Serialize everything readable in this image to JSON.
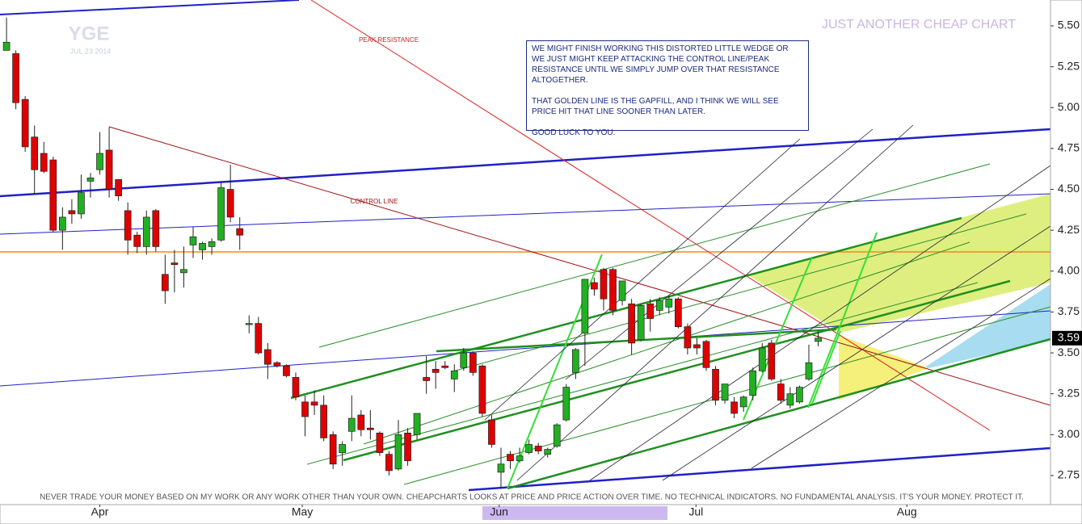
{
  "chart_data": {
    "type": "candlestick",
    "ticker": "YGE",
    "date": "JUL 23 2014",
    "brand": "JUST ANOTHER CHEAP CHART",
    "annotations": [
      "PEAK RESISTANCE",
      "CONTROL LINE"
    ],
    "note": [
      "WE MIGHT FINISH WORKING THIS DISTORTED LITTLE WEDGE OR WE JUST MIGHT KEEP ATTACKING THE CONTROL LINE/PEAK RESISTANCE UNTIL WE SIMPLY JUMP OVER THAT RESISTANCE ALTOGETHER.",
      "THAT GOLDEN LINE IS THE GAPFILL, AND I THINK WE WILL SEE PRICE HIT THAT LINE SOONER THAN LATER.",
      "GOOD LUCK TO YOU."
    ],
    "disclaimer": "NEVER TRADE YOUR MONEY BASED ON MY WORK OR ANY WORK OTHER THAN YOUR OWN. CHEAPCHARTS LOOKS AT PRICE AND PRICE ACTION OVER TIME. NO TECHNICAL INDICATORS. NO FUNDAMENTAL ANALYSIS. IT'S YOUR MONEY. PROTECT IT.",
    "up_color": "#22b022",
    "down_color": "#e00000",
    "open": [
      5.35,
      5.33,
      5.05,
      4.82,
      4.72,
      4.68,
      4.25,
      4.37,
      4.35,
      4.55,
      4.62,
      4.74,
      4.56,
      4.37,
      4.22,
      4.15,
      4.37,
      3.98,
      4.05,
      3.99,
      4.16,
      4.13,
      4.15,
      4.19,
      4.5,
      4.26,
      3.68,
      3.68,
      3.52,
      3.44,
      3.42,
      3.35,
      3.2,
      3.2,
      3.18,
      3.0,
      2.89,
      3.02,
      3.12,
      3.04,
      3.01,
      2.88,
      2.79,
      3.01,
      3.0,
      3.35,
      3.4,
      3.42,
      3.34,
      3.41,
      3.5,
      3.42,
      3.09,
      2.77,
      2.88,
      2.84,
      2.89,
      2.93,
      2.88,
      2.93,
      3.09,
      3.38,
      3.62,
      3.93,
      4.01,
      4.01,
      3.82,
      3.8,
      3.58,
      3.8,
      3.76,
      3.78,
      3.83,
      3.66,
      3.55,
      3.57,
      3.4,
      3.21,
      3.2,
      3.17,
      3.24,
      3.39,
      3.56,
      3.31,
      3.18,
      3.2,
      3.34,
      3.57
    ],
    "high": [
      5.55,
      5.35,
      5.07,
      4.89,
      4.79,
      4.7,
      4.39,
      4.44,
      4.59,
      4.6,
      4.85,
      4.88,
      4.56,
      4.42,
      4.24,
      4.37,
      4.38,
      4.1,
      4.13,
      4.15,
      4.27,
      4.18,
      4.2,
      4.55,
      4.65,
      4.33,
      3.73,
      3.72,
      3.56,
      3.45,
      3.43,
      3.38,
      3.24,
      3.27,
      3.24,
      3.02,
      2.96,
      3.24,
      3.15,
      3.15,
      3.02,
      2.9,
      3.09,
      3.04,
      3.13,
      3.48,
      3.45,
      3.45,
      3.43,
      3.53,
      3.51,
      3.43,
      3.12,
      2.92,
      2.9,
      2.92,
      2.97,
      2.95,
      2.92,
      3.07,
      3.31,
      3.53,
      3.95,
      3.96,
      4.02,
      4.02,
      3.94,
      3.83,
      3.8,
      3.83,
      3.84,
      3.85,
      3.84,
      3.68,
      3.59,
      3.58,
      3.42,
      3.29,
      3.23,
      3.24,
      3.41,
      3.56,
      3.58,
      3.34,
      3.29,
      3.3,
      3.55,
      3.63
    ],
    "low": [
      5.35,
      4.99,
      4.73,
      4.47,
      4.6,
      4.24,
      4.13,
      4.29,
      4.32,
      4.45,
      4.59,
      4.45,
      4.43,
      4.1,
      4.11,
      4.1,
      4.12,
      3.8,
      3.87,
      3.9,
      4.08,
      4.07,
      4.1,
      4.18,
      4.3,
      4.13,
      3.62,
      3.49,
      3.34,
      3.41,
      3.35,
      3.21,
      2.99,
      3.12,
      2.96,
      2.79,
      2.81,
      2.96,
      2.99,
      2.97,
      2.87,
      2.75,
      2.78,
      2.81,
      2.97,
      3.25,
      3.28,
      3.4,
      3.26,
      3.39,
      3.36,
      3.11,
      2.92,
      2.67,
      2.79,
      2.83,
      2.88,
      2.88,
      2.86,
      2.92,
      3.08,
      3.34,
      3.42,
      3.85,
      3.76,
      3.73,
      3.79,
      3.49,
      3.57,
      3.63,
      3.73,
      3.74,
      3.65,
      3.49,
      3.49,
      3.39,
      3.18,
      3.19,
      3.1,
      3.14,
      3.21,
      3.38,
      3.33,
      3.19,
      3.16,
      3.19,
      3.33,
      3.54
    ],
    "close": [
      5.4,
      5.03,
      4.76,
      4.62,
      4.61,
      4.25,
      4.33,
      4.35,
      4.48,
      4.57,
      4.72,
      4.5,
      4.46,
      4.19,
      4.15,
      4.33,
      4.15,
      3.88,
      4.04,
      4.01,
      4.21,
      4.17,
      4.18,
      4.51,
      4.33,
      4.22,
      3.68,
      3.5,
      3.43,
      3.42,
      3.36,
      3.23,
      3.11,
      3.18,
      2.98,
      2.82,
      2.94,
      3.1,
      3.03,
      3.03,
      2.89,
      2.78,
      3.0,
      2.84,
      3.13,
      3.33,
      3.38,
      3.41,
      3.39,
      3.5,
      3.38,
      3.13,
      2.94,
      2.82,
      2.84,
      2.87,
      2.94,
      2.9,
      2.91,
      3.06,
      3.29,
      3.52,
      3.95,
      3.89,
      3.83,
      3.76,
      3.94,
      3.56,
      3.79,
      3.71,
      3.82,
      3.83,
      3.66,
      3.53,
      3.53,
      3.41,
      3.21,
      3.31,
      3.13,
      3.23,
      3.39,
      3.53,
      3.34,
      3.21,
      3.25,
      3.29,
      3.44,
      3.59
    ],
    "xlim": [
      -0.7,
      111.9
    ],
    "xticks": [
      {
        "value": 10,
        "label": "Apr"
      },
      {
        "value": 31.7,
        "label": "May"
      },
      {
        "value": 52.8,
        "label": "Jun"
      },
      {
        "value": 73.9,
        "label": "Jul"
      },
      {
        "value": 96.5,
        "label": "Aug"
      }
    ],
    "ylim": [
      2.572,
      5.658
    ],
    "yticks": [
      2.75,
      {
        "value": 3,
        "label": "3.00"
      },
      3.25,
      {
        "value": 3.5,
        "label": "3.50"
      },
      3.75,
      {
        "value": 4,
        "label": "4.00"
      },
      4.25,
      {
        "value": 4.5,
        "label": "4.50"
      },
      4.75,
      {
        "value": 5,
        "label": "5.00"
      },
      5.25,
      {
        "value": 5.5,
        "label": "5.50"
      }
    ]
  }
}
